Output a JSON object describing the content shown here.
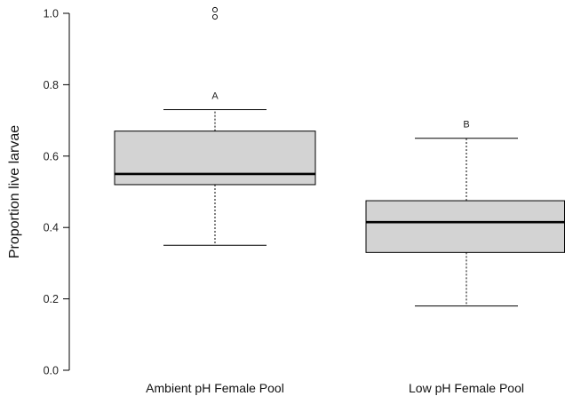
{
  "chart_data": {
    "type": "box",
    "title": "",
    "xlabel": "",
    "ylabel": "Proportion live larvae",
    "ylim": [
      0,
      1
    ],
    "y_ticks": [
      "0.0",
      "0.2",
      "0.4",
      "0.6",
      "0.8",
      "1.0"
    ],
    "grid": false,
    "categories": [
      "Ambient pH Female Pool",
      "Low pH Female Pool"
    ],
    "boxes": [
      {
        "category": "Ambient pH Female Pool",
        "whisker_low": 0.35,
        "q1": 0.52,
        "median": 0.55,
        "q3": 0.67,
        "whisker_high": 0.73,
        "outliers": [
          0.99,
          1.01
        ],
        "group_letter": "A"
      },
      {
        "category": "Low pH Female Pool",
        "whisker_low": 0.18,
        "q1": 0.33,
        "median": 0.415,
        "q3": 0.475,
        "whisker_high": 0.65,
        "outliers": [],
        "group_letter": "B"
      }
    ],
    "box_fill": "#d3d3d3",
    "line_color": "#000000"
  }
}
